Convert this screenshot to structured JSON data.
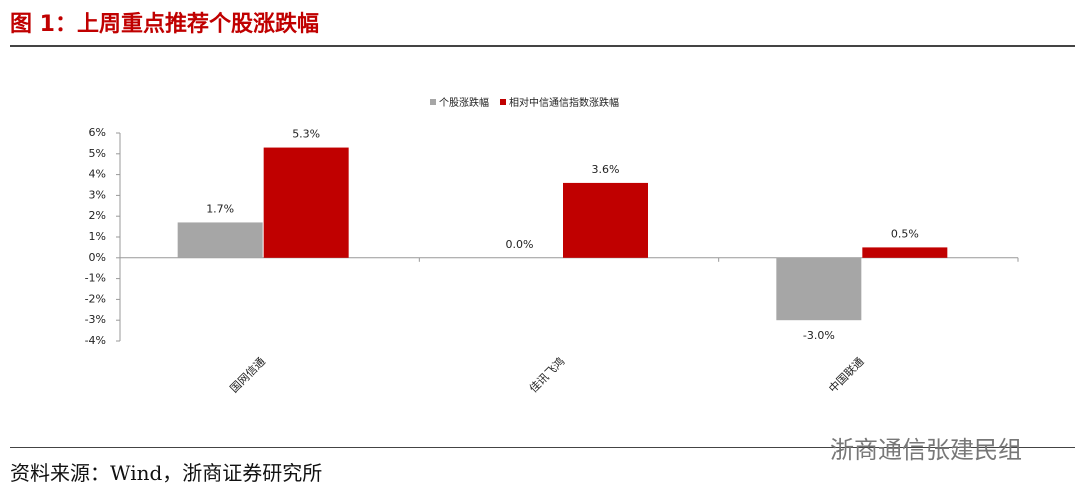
{
  "header": {
    "title": "图 1：上周重点推荐个股涨跌幅"
  },
  "chart_data": {
    "type": "bar",
    "categories": [
      "国网信通",
      "佳讯飞鸿",
      "中国联通"
    ],
    "series": [
      {
        "name": "个股涨跌幅",
        "color": "#a6a6a6",
        "values": [
          1.7,
          0.0,
          -3.0
        ],
        "value_labels": [
          "1.7%",
          "0.0%",
          "-3.0%"
        ]
      },
      {
        "name": "相对中信通信指数涨跌幅",
        "color": "#c00000",
        "values": [
          5.3,
          3.6,
          0.5
        ],
        "value_labels": [
          "5.3%",
          "3.6%",
          "0.5%"
        ]
      }
    ],
    "ylim": [
      -4,
      6
    ],
    "yticks": [
      {
        "value": -4,
        "label": "-4%"
      },
      {
        "value": -3,
        "label": "-3%"
      },
      {
        "value": -2,
        "label": "-2%"
      },
      {
        "value": -1,
        "label": "-1%"
      },
      {
        "value": 0,
        "label": "0%"
      },
      {
        "value": 1,
        "label": "1%"
      },
      {
        "value": 2,
        "label": "2%"
      },
      {
        "value": 3,
        "label": "3%"
      },
      {
        "value": 4,
        "label": "4%"
      },
      {
        "value": 5,
        "label": "5%"
      },
      {
        "value": 6,
        "label": "6%"
      }
    ],
    "legend": "top"
  },
  "footer": {
    "source": "资料来源：Wind，浙商证券研究所",
    "watermark": "浙商通信张建民组"
  }
}
